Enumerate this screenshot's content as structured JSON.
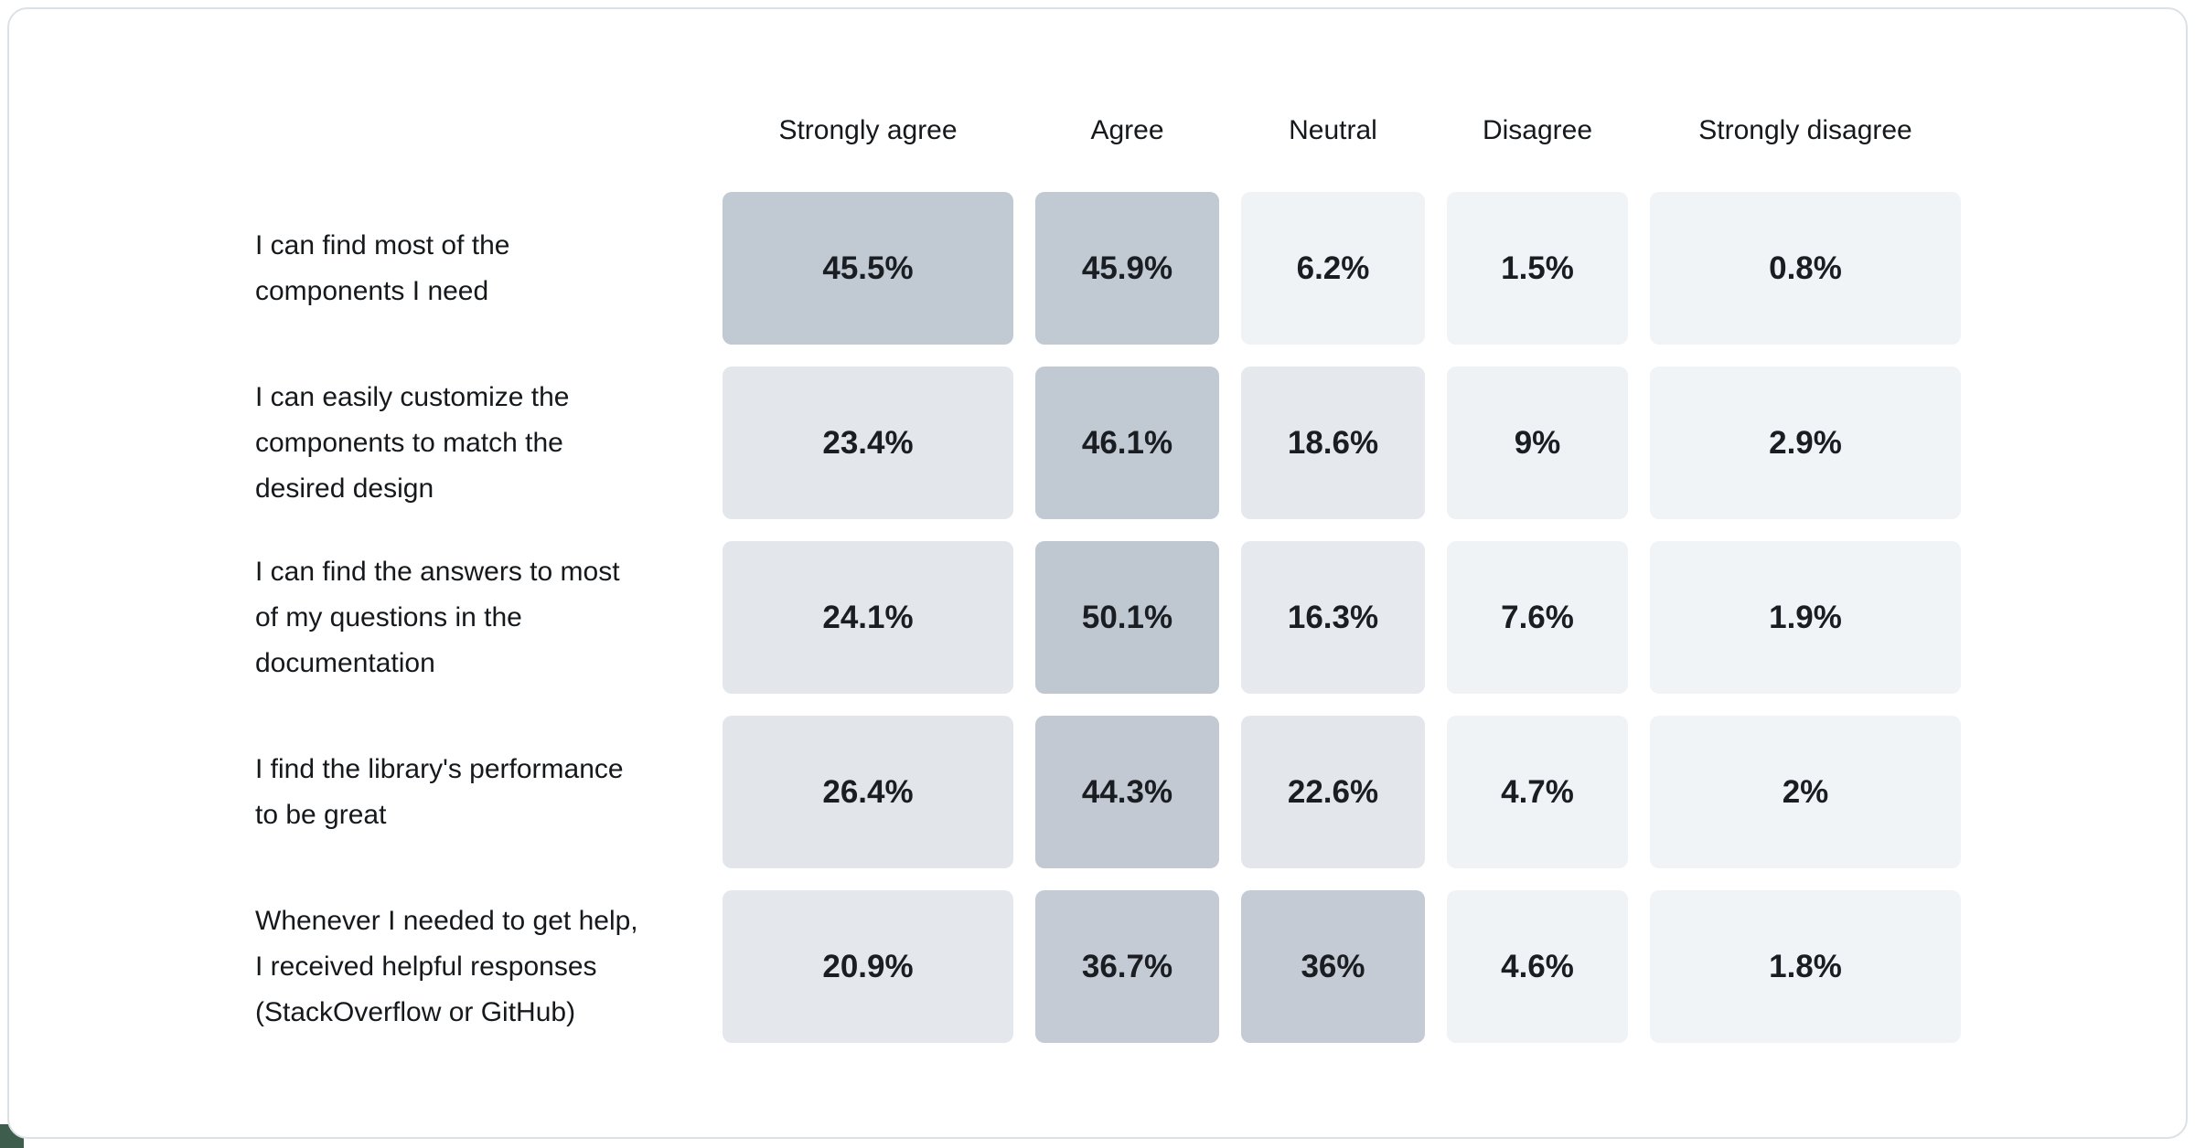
{
  "page": {
    "background_color": "#ffffff",
    "card_border_color": "#dce1e6",
    "corner_accent_color": "#3f5d4c"
  },
  "chart_data": {
    "type": "heatmap",
    "title": "",
    "legend_position": "none",
    "grid": false,
    "columns": [
      "Strongly agree",
      "Agree",
      "Neutral",
      "Disagree",
      "Strongly disagree"
    ],
    "rows": [
      {
        "label": "I can find most of the components I need",
        "label_lines": [
          "I can find most of the",
          "components I need"
        ],
        "values": [
          45.5,
          45.9,
          6.2,
          1.5,
          0.8
        ],
        "display": [
          "45.5%",
          "45.9%",
          "6.2%",
          "1.5%",
          "0.8%"
        ],
        "colors": [
          "#c1c9d2",
          "#c1c9d2",
          "#f0f3f6",
          "#f1f4f7",
          "#f1f4f7"
        ]
      },
      {
        "label": "I can easily customize the components to match the desired design",
        "label_lines": [
          "I can easily customize the",
          "components to match the",
          "desired design"
        ],
        "values": [
          23.4,
          46.1,
          18.6,
          9,
          2.9
        ],
        "display": [
          "23.4%",
          "46.1%",
          "18.6%",
          "9%",
          "2.9%"
        ],
        "colors": [
          "#e3e7ec",
          "#c1c9d2",
          "#e5e9ed",
          "#eff2f5",
          "#f1f4f7"
        ]
      },
      {
        "label": "I can find the answers to most of my questions in the documentation",
        "label_lines": [
          "I can find the answers to most",
          "of my questions in the",
          "documentation"
        ],
        "values": [
          24.1,
          50.1,
          16.3,
          7.6,
          1.9
        ],
        "display": [
          "24.1%",
          "50.1%",
          "16.3%",
          "7.6%",
          "1.9%"
        ],
        "colors": [
          "#e3e7ec",
          "#bfc7d1",
          "#e6eaee",
          "#f0f3f6",
          "#f1f4f7"
        ]
      },
      {
        "label": "I find the library's performance to be great",
        "label_lines": [
          "I find the library's performance",
          "to be great"
        ],
        "values": [
          26.4,
          44.3,
          22.6,
          4.7,
          2
        ],
        "display": [
          "26.4%",
          "44.3%",
          "22.6%",
          "4.7%",
          "2%"
        ],
        "colors": [
          "#e2e6eb",
          "#c2c9d2",
          "#e3e7ec",
          "#f0f3f6",
          "#f1f4f7"
        ]
      },
      {
        "label": "Whenever I needed to get help, I received helpful responses (StackOverflow or GitHub)",
        "label_lines": [
          "Whenever I needed to get help,",
          "I received helpful responses",
          "(StackOverflow or GitHub)"
        ],
        "values": [
          20.9,
          36.7,
          36,
          4.6,
          1.8
        ],
        "display": [
          "20.9%",
          "36.7%",
          "36%",
          "4.6%",
          "1.8%"
        ],
        "colors": [
          "#e4e8ed",
          "#c4cbd4",
          "#c4cbd4",
          "#f0f3f6",
          "#f1f4f7"
        ]
      }
    ],
    "value_range": [
      0,
      50.1
    ],
    "scale_low_color": "#f2f5f8",
    "scale_high_color": "#bfc7d1"
  }
}
